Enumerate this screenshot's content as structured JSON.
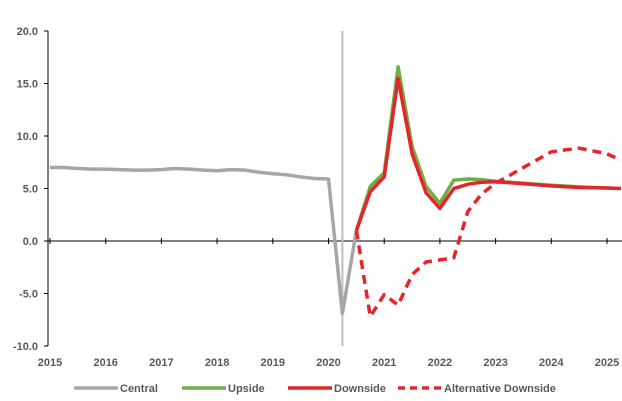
{
  "chart_data": {
    "type": "line",
    "title": "",
    "xlabel": "",
    "ylabel": "",
    "xlim": [
      2015.0,
      2025.25
    ],
    "ylim": [
      -10,
      20
    ],
    "grid": false,
    "legend_position": "bottom",
    "y_ticks": [
      "20.0",
      "15.0",
      "10.0",
      "5.0",
      "0.0",
      "-5.0",
      "-10.0"
    ],
    "y_tick_values": [
      20,
      15,
      10,
      5,
      0,
      -5,
      -10
    ],
    "x_ticks": [
      "2015",
      "2016",
      "2017",
      "2018",
      "2019",
      "2020",
      "2021",
      "2022",
      "2023",
      "2024",
      "2025"
    ],
    "x_tick_values": [
      2015,
      2016,
      2017,
      2018,
      2019,
      2020,
      2021,
      2022,
      2023,
      2024,
      2025
    ],
    "marker_x": 2020.25,
    "series": [
      {
        "name": "Central",
        "color": "#a6a6a6",
        "dash": "solid",
        "points": [
          [
            2015.0,
            7.0
          ],
          [
            2015.25,
            7.0
          ],
          [
            2015.5,
            6.9
          ],
          [
            2015.75,
            6.85
          ],
          [
            2016.0,
            6.85
          ],
          [
            2016.25,
            6.8
          ],
          [
            2016.5,
            6.75
          ],
          [
            2016.75,
            6.75
          ],
          [
            2017.0,
            6.8
          ],
          [
            2017.25,
            6.9
          ],
          [
            2017.5,
            6.85
          ],
          [
            2017.75,
            6.75
          ],
          [
            2018.0,
            6.7
          ],
          [
            2018.25,
            6.8
          ],
          [
            2018.5,
            6.75
          ],
          [
            2018.75,
            6.55
          ],
          [
            2019.0,
            6.4
          ],
          [
            2019.25,
            6.3
          ],
          [
            2019.5,
            6.1
          ],
          [
            2019.75,
            5.95
          ],
          [
            2020.0,
            5.9
          ],
          [
            2020.25,
            -6.9
          ],
          [
            2020.5,
            1.0
          ]
        ]
      },
      {
        "name": "Upside",
        "color": "#70ad47",
        "dash": "solid",
        "points": [
          [
            2020.5,
            1.0
          ],
          [
            2020.75,
            5.2
          ],
          [
            2021.0,
            6.5
          ],
          [
            2021.25,
            16.6
          ],
          [
            2021.5,
            9.0
          ],
          [
            2021.75,
            5.2
          ],
          [
            2022.0,
            3.6
          ],
          [
            2022.25,
            5.8
          ],
          [
            2022.5,
            5.9
          ],
          [
            2022.75,
            5.85
          ],
          [
            2023.0,
            5.7
          ],
          [
            2023.5,
            5.5
          ],
          [
            2024.0,
            5.3
          ],
          [
            2024.5,
            5.15
          ],
          [
            2025.0,
            5.05
          ],
          [
            2025.25,
            5.0
          ]
        ]
      },
      {
        "name": "Downside",
        "color": "#e3262a",
        "dash": "solid",
        "points": [
          [
            2020.5,
            1.0
          ],
          [
            2020.75,
            4.7
          ],
          [
            2021.0,
            6.1
          ],
          [
            2021.25,
            15.5
          ],
          [
            2021.5,
            8.3
          ],
          [
            2021.75,
            4.6
          ],
          [
            2022.0,
            3.1
          ],
          [
            2022.25,
            5.0
          ],
          [
            2022.5,
            5.4
          ],
          [
            2022.75,
            5.6
          ],
          [
            2023.0,
            5.65
          ],
          [
            2023.5,
            5.45
          ],
          [
            2024.0,
            5.25
          ],
          [
            2024.5,
            5.1
          ],
          [
            2025.0,
            5.05
          ],
          [
            2025.25,
            5.0
          ]
        ]
      },
      {
        "name": "Alternative Downside",
        "color": "#e3262a",
        "dash": "dashed",
        "points": [
          [
            2020.5,
            1.0
          ],
          [
            2020.75,
            -7.2
          ],
          [
            2021.0,
            -5.1
          ],
          [
            2021.25,
            -6.1
          ],
          [
            2021.5,
            -3.2
          ],
          [
            2021.75,
            -2.0
          ],
          [
            2022.0,
            -1.8
          ],
          [
            2022.25,
            -1.6
          ],
          [
            2022.5,
            2.8
          ],
          [
            2022.75,
            4.5
          ],
          [
            2023.0,
            5.5
          ],
          [
            2023.5,
            7.0
          ],
          [
            2024.0,
            8.5
          ],
          [
            2024.5,
            8.85
          ],
          [
            2025.0,
            8.3
          ],
          [
            2025.25,
            7.7
          ]
        ]
      }
    ]
  }
}
